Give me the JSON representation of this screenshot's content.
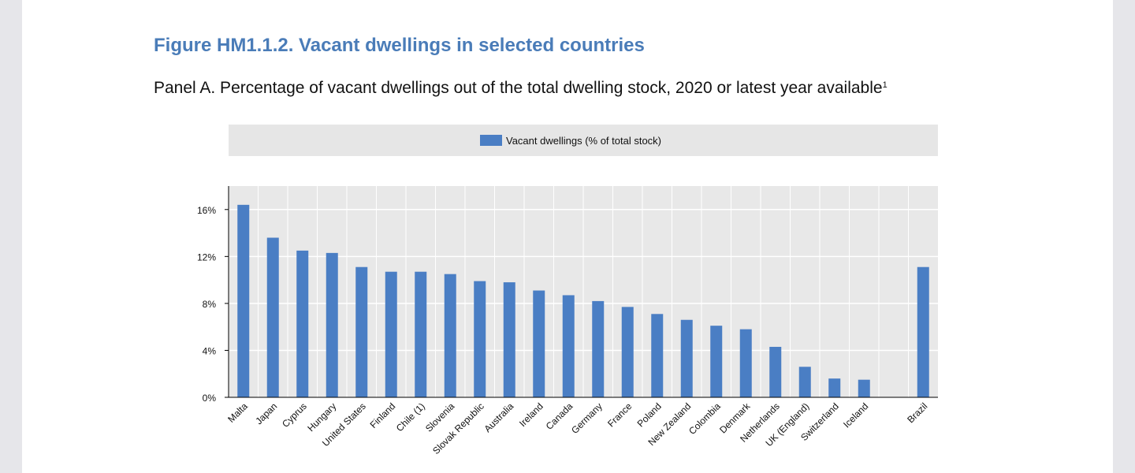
{
  "figure": {
    "title": "Figure HM1.1.2. Vacant dwellings in selected countries",
    "panel_title": "Panel A. Percentage of vacant dwellings out of the total dwelling stock, 2020 or latest year available",
    "panel_footnote": "1"
  },
  "colors": {
    "bar": "#4a7ec4",
    "plot_bg": "#e8e8e8",
    "gridline": "#ffffff",
    "title": "#4a7cb8"
  },
  "chart_data": {
    "type": "bar",
    "title": "Panel A. Percentage of vacant dwellings out of the total dwelling stock, 2020 or latest year available",
    "legend": [
      "Vacant dwellings (% of total stock)"
    ],
    "legend_position": "top",
    "categories": [
      "Malta",
      "Japan",
      "Cyprus",
      "Hungary",
      "United States",
      "Finland",
      "Chile (1)",
      "Slovenia",
      "Slovak Republic",
      "Australia",
      "Ireland",
      "Canada",
      "Germany",
      "France",
      "Poland",
      "New Zealand",
      "Colombia",
      "Denmark",
      "Netherlands",
      "UK (England)",
      "Switzerland",
      "Iceland",
      "",
      "Brazil"
    ],
    "values": [
      16.4,
      13.6,
      12.5,
      12.3,
      11.1,
      10.7,
      10.7,
      10.5,
      9.9,
      9.8,
      9.1,
      8.7,
      8.2,
      7.7,
      7.1,
      6.6,
      6.1,
      5.8,
      4.3,
      2.6,
      1.6,
      1.5,
      null,
      11.1
    ],
    "yticks": [
      "0%",
      "4%",
      "8%",
      "12%",
      "16%"
    ],
    "ytick_values": [
      0,
      4,
      8,
      12,
      16
    ],
    "ylim": [
      0,
      18
    ],
    "xlabel": "",
    "ylabel": "",
    "grid": true
  }
}
